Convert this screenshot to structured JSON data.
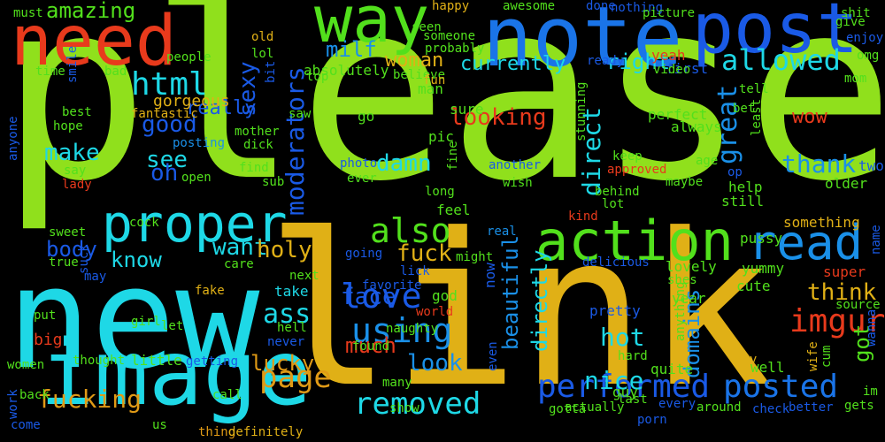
{
  "background": "#000000",
  "words": [
    {
      "text": "please",
      "color": "#90e01c"
    },
    {
      "text": "link",
      "color": "#e0b016"
    },
    {
      "text": "new",
      "color": "#1ed8e6"
    },
    {
      "text": "image",
      "color": "#1ed8e6"
    },
    {
      "text": "note",
      "color": "#1a74e8"
    },
    {
      "text": "post",
      "color": "#1a5ae6"
    },
    {
      "text": "need",
      "color": "#e83a1c"
    },
    {
      "text": "way",
      "color": "#52e01c"
    },
    {
      "text": "action",
      "color": "#52e01c"
    },
    {
      "text": "proper",
      "color": "#1ed8e6"
    },
    {
      "text": "read",
      "color": "#1a90e8"
    },
    {
      "text": "performed",
      "color": "#1a5ae6"
    },
    {
      "text": "posted",
      "color": "#1a74e8"
    },
    {
      "text": "removed",
      "color": "#1ed8e6"
    },
    {
      "text": "page",
      "color": "#e09a16"
    },
    {
      "text": "also",
      "color": "#52e01c"
    },
    {
      "text": "love",
      "color": "#1a5ae6"
    },
    {
      "text": "using",
      "color": "#1a90e8"
    },
    {
      "text": "allowed",
      "color": "#1ed8e6"
    },
    {
      "text": "html",
      "color": "#1ed8e6"
    },
    {
      "text": "moderators",
      "color": "#1a5ae6"
    },
    {
      "text": "direct",
      "color": "#1ed8e6"
    },
    {
      "text": "imgur",
      "color": "#e83a1c"
    },
    {
      "text": "fucking",
      "color": "#e09a16"
    },
    {
      "text": "fuck",
      "color": "#e0b016"
    },
    {
      "text": "face",
      "color": "#1a5ae6"
    },
    {
      "text": "look",
      "color": "#1a90e8"
    },
    {
      "text": "hot",
      "color": "#1ed8e6"
    },
    {
      "text": "nice",
      "color": "#1ed8e6"
    },
    {
      "text": "think",
      "color": "#e0b016"
    },
    {
      "text": "thank",
      "color": "#1a90e8"
    },
    {
      "text": "great",
      "color": "#1a90e8"
    },
    {
      "text": "directly",
      "color": "#1ed8e6"
    },
    {
      "text": "beautiful",
      "color": "#1a90e8"
    },
    {
      "text": "domains",
      "color": "#1a90e8"
    },
    {
      "text": "got",
      "color": "#52e01c"
    },
    {
      "text": "amazing",
      "color": "#52e01c"
    },
    {
      "text": "really",
      "color": "#1a5ae6"
    },
    {
      "text": "milf",
      "color": "#1a90e8"
    },
    {
      "text": "woman",
      "color": "#e0b016"
    },
    {
      "text": "currently",
      "color": "#1ed8e6"
    },
    {
      "text": "right",
      "color": "#1ed8e6"
    },
    {
      "text": "sexy",
      "color": "#1a5ae6"
    },
    {
      "text": "good",
      "color": "#1a5ae6"
    },
    {
      "text": "make",
      "color": "#1ed8e6"
    },
    {
      "text": "see",
      "color": "#1ed8e6"
    },
    {
      "text": "oh",
      "color": "#1a5ae6"
    },
    {
      "text": "damn",
      "color": "#1ed8e6"
    },
    {
      "text": "looking",
      "color": "#e83a1c"
    },
    {
      "text": "want",
      "color": "#1ed8e6"
    },
    {
      "text": "holy",
      "color": "#e0b016"
    },
    {
      "text": "know",
      "color": "#1ed8e6"
    },
    {
      "text": "body",
      "color": "#1a5ae6"
    },
    {
      "text": "ass",
      "color": "#1ed8e6"
    },
    {
      "text": "lucky",
      "color": "#e09a16"
    },
    {
      "text": "much",
      "color": "#e83a1c"
    },
    {
      "text": "wow",
      "color": "#e83a1c"
    },
    {
      "text": "must",
      "color": "#52e01c"
    },
    {
      "text": "time",
      "color": "#52e01c"
    },
    {
      "text": "smile",
      "color": "#1a5ae6"
    },
    {
      "text": "bad",
      "color": "#52e01c"
    },
    {
      "text": "best",
      "color": "#52e01c"
    },
    {
      "text": "hope",
      "color": "#52e01c"
    },
    {
      "text": "fantastic",
      "color": "#e0b016"
    },
    {
      "text": "gorgeous",
      "color": "#e0b016"
    },
    {
      "text": "people",
      "color": "#52e01c"
    },
    {
      "text": "posting",
      "color": "#1a90e8"
    },
    {
      "text": "mother",
      "color": "#52e01c"
    },
    {
      "text": "dick",
      "color": "#52e01c"
    },
    {
      "text": "open",
      "color": "#52e01c"
    },
    {
      "text": "say",
      "color": "#52e01c"
    },
    {
      "text": "lady",
      "color": "#e83a1c"
    },
    {
      "text": "sweet",
      "color": "#52e01c"
    },
    {
      "text": "true",
      "color": "#52e01c"
    },
    {
      "text": "suck",
      "color": "#1a5ae6"
    },
    {
      "text": "may",
      "color": "#1a5ae6"
    },
    {
      "text": "put",
      "color": "#52e01c"
    },
    {
      "text": "big",
      "color": "#e83a1c"
    },
    {
      "text": "girl",
      "color": "#52e01c"
    },
    {
      "text": "let",
      "color": "#52e01c"
    },
    {
      "text": "women",
      "color": "#52e01c"
    },
    {
      "text": "thought",
      "color": "#52e01c"
    },
    {
      "text": "back",
      "color": "#52e01c"
    },
    {
      "text": "work",
      "color": "#1a5ae6"
    },
    {
      "text": "come",
      "color": "#1a5ae6"
    },
    {
      "text": "us",
      "color": "#52e01c"
    },
    {
      "text": "thing",
      "color": "#e09a16"
    },
    {
      "text": "call",
      "color": "#52e01c"
    },
    {
      "text": "definitely",
      "color": "#e0b016"
    },
    {
      "text": "anyone",
      "color": "#1a5ae6"
    },
    {
      "text": "old",
      "color": "#e0b016"
    },
    {
      "text": "lol",
      "color": "#52e01c"
    },
    {
      "text": "bit",
      "color": "#1a5ae6"
    },
    {
      "text": "find",
      "color": "#52e01c"
    },
    {
      "text": "sub",
      "color": "#52e01c"
    },
    {
      "text": "cock",
      "color": "#52e01c"
    },
    {
      "text": "fake",
      "color": "#e0b016"
    },
    {
      "text": "care",
      "color": "#52e01c"
    },
    {
      "text": "next",
      "color": "#52e01c"
    },
    {
      "text": "take",
      "color": "#1ed8e6"
    },
    {
      "text": "hell",
      "color": "#52e01c"
    },
    {
      "text": "never",
      "color": "#1a5ae6"
    },
    {
      "text": "little",
      "color": "#52e01c"
    },
    {
      "text": "getting",
      "color": "#1a5ae6"
    },
    {
      "text": "absolutely",
      "color": "#52e01c"
    },
    {
      "text": "top",
      "color": "#52e01c"
    },
    {
      "text": "man",
      "color": "#52e01c"
    },
    {
      "text": "saw",
      "color": "#52e01c"
    },
    {
      "text": "go",
      "color": "#52e01c"
    },
    {
      "text": "pic",
      "color": "#52e01c"
    },
    {
      "text": "sure",
      "color": "#52e01c"
    },
    {
      "text": "photo",
      "color": "#1a5ae6"
    },
    {
      "text": "ever",
      "color": "#52e01c"
    },
    {
      "text": "going",
      "color": "#1a5ae6"
    },
    {
      "text": "favorite",
      "color": "#1a5ae6"
    },
    {
      "text": "lick",
      "color": "#1a5ae6"
    },
    {
      "text": "god",
      "color": "#52e01c"
    },
    {
      "text": "world",
      "color": "#e83a1c"
    },
    {
      "text": "naughty",
      "color": "#52e01c"
    },
    {
      "text": "found",
      "color": "#52e01c"
    },
    {
      "text": "many",
      "color": "#52e01c"
    },
    {
      "text": "show",
      "color": "#52e01c"
    },
    {
      "text": "even",
      "color": "#1a5ae6"
    },
    {
      "text": "might",
      "color": "#52e01c"
    },
    {
      "text": "real",
      "color": "#1a90e8"
    },
    {
      "text": "now",
      "color": "#1a5ae6"
    },
    {
      "text": "seen",
      "color": "#52e01c"
    },
    {
      "text": "someone",
      "color": "#52e01c"
    },
    {
      "text": "probably",
      "color": "#52e01c"
    },
    {
      "text": "believe",
      "color": "#52e01c"
    },
    {
      "text": "fun",
      "color": "#e0b016"
    },
    {
      "text": "happy",
      "color": "#e0b016"
    },
    {
      "text": "awesome",
      "color": "#52e01c"
    },
    {
      "text": "done",
      "color": "#1a5ae6"
    },
    {
      "text": "nothing",
      "color": "#1a5ae6"
    },
    {
      "text": "ready",
      "color": "#1a5ae6"
    },
    {
      "text": "stunning",
      "color": "#52e01c"
    },
    {
      "text": "fine",
      "color": "#52e01c"
    },
    {
      "text": "another",
      "color": "#1a5ae6"
    },
    {
      "text": "wish",
      "color": "#52e01c"
    },
    {
      "text": "keep",
      "color": "#52e01c"
    },
    {
      "text": "approved",
      "color": "#e83a1c"
    },
    {
      "text": "behind",
      "color": "#52e01c"
    },
    {
      "text": "lot",
      "color": "#52e01c"
    },
    {
      "text": "long",
      "color": "#52e01c"
    },
    {
      "text": "feel",
      "color": "#52e01c"
    },
    {
      "text": "kind",
      "color": "#e83a1c"
    },
    {
      "text": "delicious",
      "color": "#1a5ae6"
    },
    {
      "text": "maybe",
      "color": "#52e01c"
    },
    {
      "text": "age",
      "color": "#52e01c"
    },
    {
      "text": "perfect",
      "color": "#52e01c"
    },
    {
      "text": "always",
      "color": "#52e01c"
    },
    {
      "text": "first",
      "color": "#1a5ae6"
    },
    {
      "text": "picture",
      "color": "#52e01c"
    },
    {
      "text": "yeah",
      "color": "#e83a1c"
    },
    {
      "text": "video",
      "color": "#52e01c"
    },
    {
      "text": "shit",
      "color": "#52e01c"
    },
    {
      "text": "give",
      "color": "#52e01c"
    },
    {
      "text": "enjoy",
      "color": "#1a5ae6"
    },
    {
      "text": "omg",
      "color": "#52e01c"
    },
    {
      "text": "mom",
      "color": "#52e01c"
    },
    {
      "text": "tell",
      "color": "#52e01c"
    },
    {
      "text": "bet",
      "color": "#52e01c"
    },
    {
      "text": "least",
      "color": "#52e01c"
    },
    {
      "text": "op",
      "color": "#1a5ae6"
    },
    {
      "text": "help",
      "color": "#52e01c"
    },
    {
      "text": "older",
      "color": "#52e01c"
    },
    {
      "text": "two",
      "color": "#1a5ae6"
    },
    {
      "text": "still",
      "color": "#52e01c"
    },
    {
      "text": "pussy",
      "color": "#52e01c"
    },
    {
      "text": "something",
      "color": "#e0b016"
    },
    {
      "text": "name",
      "color": "#1a5ae6"
    },
    {
      "text": "lovely",
      "color": "#52e01c"
    },
    {
      "text": "yummy",
      "color": "#52e01c"
    },
    {
      "text": "shes",
      "color": "#52e01c"
    },
    {
      "text": "super",
      "color": "#e83a1c"
    },
    {
      "text": "cute",
      "color": "#52e01c"
    },
    {
      "text": "source",
      "color": "#52e01c"
    },
    {
      "text": "year",
      "color": "#52e01c"
    },
    {
      "text": "pretty",
      "color": "#1a5ae6"
    },
    {
      "text": "wanna",
      "color": "#1a5ae6"
    },
    {
      "text": "wife",
      "color": "#e0b016"
    },
    {
      "text": "cum",
      "color": "#52e01c"
    },
    {
      "text": "day",
      "color": "#e0b016"
    },
    {
      "text": "hard",
      "color": "#52e01c"
    },
    {
      "text": "anything",
      "color": "#52e01c"
    },
    {
      "text": "well",
      "color": "#52e01c"
    },
    {
      "text": "quite",
      "color": "#52e01c"
    },
    {
      "text": "guy",
      "color": "#52e01c"
    },
    {
      "text": "last",
      "color": "#52e01c"
    },
    {
      "text": "im",
      "color": "#52e01c"
    },
    {
      "text": "gotta",
      "color": "#52e01c"
    },
    {
      "text": "actually",
      "color": "#52e01c"
    },
    {
      "text": "every",
      "color": "#1a5ae6"
    },
    {
      "text": "porn",
      "color": "#1a5ae6"
    },
    {
      "text": "around",
      "color": "#52e01c"
    },
    {
      "text": "check",
      "color": "#1a5ae6"
    },
    {
      "text": "better",
      "color": "#1a5ae6"
    },
    {
      "text": "gets",
      "color": "#52e01c"
    }
  ]
}
